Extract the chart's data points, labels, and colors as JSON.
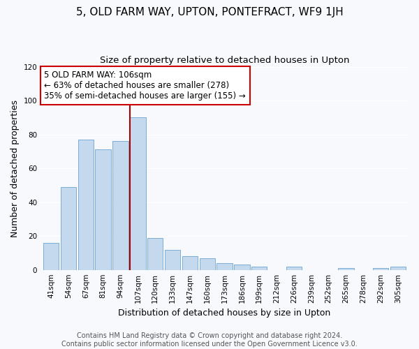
{
  "title": "5, OLD FARM WAY, UPTON, PONTEFRACT, WF9 1JH",
  "subtitle": "Size of property relative to detached houses in Upton",
  "xlabel": "Distribution of detached houses by size in Upton",
  "ylabel": "Number of detached properties",
  "categories": [
    "41sqm",
    "54sqm",
    "67sqm",
    "81sqm",
    "94sqm",
    "107sqm",
    "120sqm",
    "133sqm",
    "147sqm",
    "160sqm",
    "173sqm",
    "186sqm",
    "199sqm",
    "212sqm",
    "226sqm",
    "239sqm",
    "252sqm",
    "265sqm",
    "278sqm",
    "292sqm",
    "305sqm"
  ],
  "values": [
    16,
    49,
    77,
    71,
    76,
    90,
    19,
    12,
    8,
    7,
    4,
    3,
    2,
    0,
    2,
    0,
    0,
    1,
    0,
    1,
    2
  ],
  "bar_color": "#c5d9ee",
  "bar_edge_color": "#7aaed6",
  "highlight_index": 5,
  "highlight_line_color": "#aa0000",
  "ylim": [
    0,
    120
  ],
  "yticks": [
    0,
    20,
    40,
    60,
    80,
    100,
    120
  ],
  "annotation_lines": [
    "5 OLD FARM WAY: 106sqm",
    "← 63% of detached houses are smaller (278)",
    "35% of semi-detached houses are larger (155) →"
  ],
  "annotation_box_facecolor": "#ffffff",
  "annotation_box_edgecolor": "#cc0000",
  "footer_lines": [
    "Contains HM Land Registry data © Crown copyright and database right 2024.",
    "Contains public sector information licensed under the Open Government Licence v3.0."
  ],
  "background_color": "#f7f9fc",
  "plot_bg_color": "#f7f9fc",
  "grid_color": "#ffffff",
  "title_fontsize": 11,
  "subtitle_fontsize": 9.5,
  "axis_label_fontsize": 9,
  "tick_fontsize": 7.5,
  "annotation_fontsize": 8.5,
  "footer_fontsize": 7
}
